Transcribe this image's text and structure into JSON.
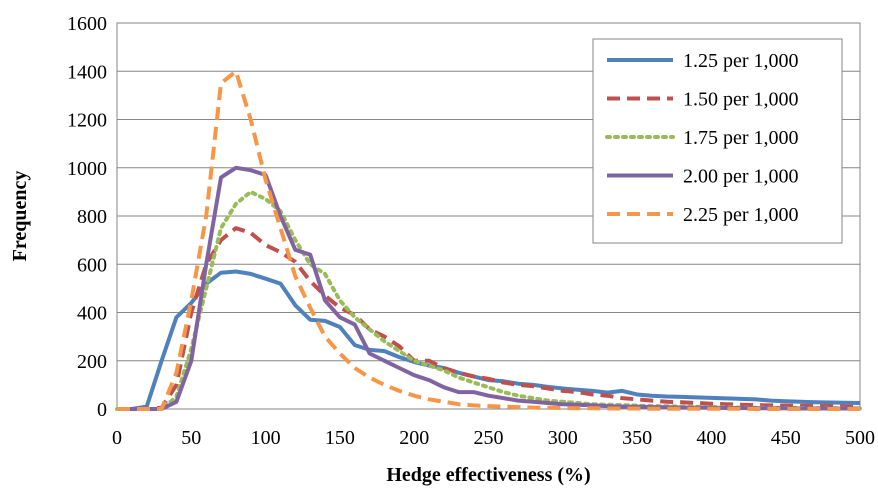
{
  "chart_data": {
    "type": "line",
    "title": "",
    "xlabel": "Hedge effectiveness (%)",
    "ylabel": "Frequency",
    "xlim": [
      0,
      500
    ],
    "ylim": [
      0,
      1600
    ],
    "x_ticks": [
      "0",
      "50",
      "100",
      "150",
      "200",
      "250",
      "300",
      "350",
      "400",
      "450",
      "500"
    ],
    "y_ticks": [
      "0",
      "200",
      "400",
      "600",
      "800",
      "1000",
      "1200",
      "1400",
      "1600"
    ],
    "grid": "horizontal",
    "legend_position": "top-right",
    "x": [
      0,
      10,
      20,
      30,
      40,
      50,
      60,
      70,
      80,
      90,
      100,
      110,
      120,
      130,
      140,
      150,
      160,
      170,
      180,
      190,
      200,
      210,
      220,
      230,
      240,
      250,
      260,
      270,
      280,
      290,
      300,
      310,
      320,
      330,
      340,
      350,
      360,
      370,
      380,
      390,
      400,
      410,
      420,
      430,
      440,
      450,
      460,
      470,
      480,
      490,
      500
    ],
    "series": [
      {
        "name": "1.25 per 1,000",
        "color": "#4f81bd",
        "style": "solid",
        "values": [
          0,
          0,
          10,
          200,
          380,
          440,
          520,
          565,
          570,
          560,
          540,
          520,
          430,
          370,
          365,
          340,
          265,
          245,
          240,
          215,
          195,
          180,
          170,
          150,
          135,
          120,
          115,
          105,
          100,
          92,
          85,
          80,
          75,
          68,
          75,
          60,
          55,
          52,
          50,
          48,
          46,
          44,
          42,
          40,
          35,
          32,
          30,
          28,
          27,
          26,
          25
        ]
      },
      {
        "name": "1.50 per 1,000",
        "color": "#c0504d",
        "style": "dashed",
        "values": [
          0,
          0,
          0,
          5,
          100,
          400,
          600,
          700,
          750,
          730,
          680,
          650,
          610,
          530,
          470,
          420,
          390,
          330,
          300,
          260,
          200,
          200,
          170,
          150,
          135,
          125,
          110,
          100,
          95,
          85,
          75,
          70,
          60,
          55,
          45,
          40,
          35,
          30,
          28,
          25,
          22,
          20,
          18,
          16,
          15,
          14,
          13,
          12,
          11,
          10,
          9
        ]
      },
      {
        "name": "1.75 per 1,000",
        "color": "#9bbb59",
        "style": "dotted",
        "values": [
          0,
          0,
          0,
          0,
          50,
          250,
          500,
          750,
          850,
          900,
          870,
          820,
          700,
          600,
          560,
          450,
          380,
          330,
          280,
          240,
          200,
          180,
          160,
          130,
          110,
          90,
          70,
          55,
          45,
          35,
          30,
          25,
          20,
          18,
          16,
          14,
          12,
          11,
          10,
          9,
          8,
          7,
          6,
          5,
          5,
          4,
          4,
          3,
          3,
          3,
          2
        ]
      },
      {
        "name": "2.00 per 1,000",
        "color": "#8064a2",
        "style": "solid",
        "values": [
          0,
          0,
          0,
          0,
          30,
          200,
          600,
          960,
          1000,
          990,
          970,
          800,
          660,
          640,
          450,
          380,
          350,
          230,
          200,
          170,
          140,
          120,
          90,
          70,
          70,
          55,
          45,
          35,
          30,
          25,
          20,
          18,
          15,
          12,
          10,
          9,
          8,
          7,
          6,
          5,
          5,
          4,
          4,
          3,
          3,
          3,
          2,
          2,
          2,
          2,
          2
        ]
      },
      {
        "name": "2.25 per 1,000",
        "color": "#f79646",
        "style": "dashed",
        "values": [
          0,
          0,
          0,
          0,
          150,
          450,
          800,
          1350,
          1400,
          1200,
          950,
          750,
          550,
          420,
          300,
          230,
          170,
          130,
          100,
          75,
          55,
          40,
          30,
          20,
          15,
          12,
          10,
          8,
          6,
          5,
          4,
          3,
          3,
          2,
          2,
          2,
          1,
          1,
          1,
          1,
          1,
          1,
          1,
          0,
          0,
          0,
          0,
          0,
          0,
          0,
          0
        ]
      }
    ]
  }
}
